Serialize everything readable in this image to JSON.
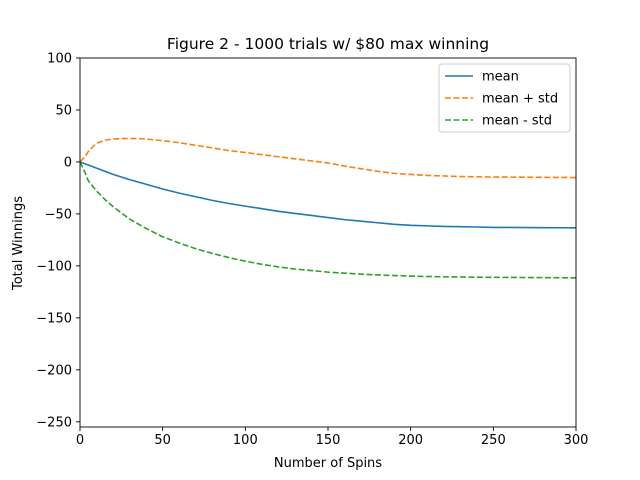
{
  "chart_data": {
    "type": "line",
    "title": "Figure 2 - 1000 trials w/ $80 max winning",
    "xlabel": "Number of Spins",
    "ylabel": "Total Winnings",
    "xlim": [
      0,
      300
    ],
    "ylim": [
      -255,
      100
    ],
    "xticks": [
      0,
      50,
      100,
      150,
      200,
      250,
      300
    ],
    "yticks": [
      -250,
      -200,
      -150,
      -100,
      -50,
      0,
      50,
      100
    ],
    "xtick_labels": [
      "0",
      "50",
      "100",
      "150",
      "200",
      "250",
      "300"
    ],
    "ytick_labels": [
      "−250",
      "−200",
      "−150",
      "−100",
      "−50",
      "0",
      "50",
      "100"
    ],
    "grid": false,
    "legend_position": "top-right",
    "series": [
      {
        "name": "mean",
        "color": "#1f77b4",
        "style": "solid",
        "x": [
          0,
          5,
          10,
          15,
          20,
          25,
          30,
          40,
          50,
          60,
          70,
          80,
          90,
          100,
          110,
          120,
          130,
          140,
          150,
          160,
          170,
          180,
          190,
          200,
          210,
          220,
          230,
          240,
          250,
          260,
          270,
          280,
          290,
          300
        ],
        "y": [
          0,
          -3,
          -6,
          -9,
          -12,
          -14.5,
          -17,
          -21.5,
          -26,
          -30,
          -33.5,
          -37,
          -40,
          -42.5,
          -45,
          -47.5,
          -49.5,
          -51.5,
          -53.5,
          -55.5,
          -57,
          -58.5,
          -60,
          -61,
          -61.5,
          -62,
          -62.3,
          -62.6,
          -63,
          -63,
          -63.1,
          -63.2,
          -63.3,
          -63.4
        ]
      },
      {
        "name": "mean + std",
        "color": "#ff7f0e",
        "style": "dashed",
        "x": [
          0,
          3,
          5,
          8,
          10,
          15,
          20,
          25,
          30,
          35,
          40,
          50,
          60,
          70,
          80,
          90,
          100,
          110,
          120,
          130,
          140,
          150,
          160,
          170,
          180,
          190,
          200,
          210,
          220,
          230,
          240,
          250,
          260,
          270,
          280,
          290,
          300
        ],
        "y": [
          0,
          5,
          10,
          15,
          18,
          21,
          22,
          22.5,
          22.5,
          22.5,
          22,
          20.5,
          18.5,
          16,
          13.5,
          11,
          9,
          7,
          5,
          3,
          1,
          -1,
          -4,
          -6.5,
          -9,
          -11,
          -12,
          -13,
          -13.5,
          -14,
          -14.3,
          -14.5,
          -14.6,
          -14.7,
          -14.8,
          -14.9,
          -15
        ]
      },
      {
        "name": "mean - std",
        "color": "#2ca02c",
        "style": "dashed",
        "x": [
          0,
          3,
          5,
          8,
          10,
          15,
          20,
          25,
          30,
          40,
          50,
          60,
          70,
          80,
          90,
          100,
          110,
          120,
          130,
          140,
          150,
          160,
          170,
          180,
          190,
          200,
          210,
          220,
          230,
          240,
          250,
          260,
          270,
          280,
          290,
          300
        ],
        "y": [
          0,
          -10,
          -18,
          -24,
          -28,
          -36,
          -43,
          -49,
          -55,
          -64,
          -72,
          -78,
          -83.5,
          -88,
          -92,
          -95.5,
          -98.5,
          -101,
          -103,
          -104.5,
          -106,
          -107,
          -108,
          -108.7,
          -109.3,
          -109.8,
          -110.2,
          -110.5,
          -110.7,
          -110.9,
          -111,
          -111.1,
          -111.2,
          -111.3,
          -111.4,
          -111.5
        ]
      }
    ]
  }
}
